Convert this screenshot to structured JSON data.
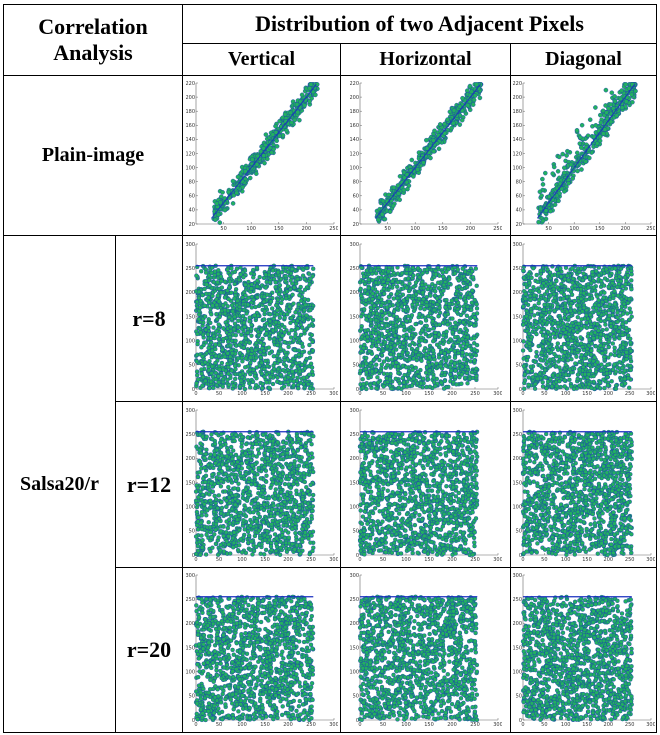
{
  "header": {
    "col1": "Correlation Analysis",
    "col2": "Distribution of two Adjacent Pixels",
    "directions": [
      "Vertical",
      "Horizontal",
      "Diagonal"
    ]
  },
  "rows": {
    "plain_label": "Plain-image",
    "cipher_label": "Salsa20/r",
    "rounds": [
      "r=8",
      "r=12",
      "r=20"
    ]
  },
  "colors": {
    "point_fill": "#22b060",
    "point_edge": "#1a2fbf",
    "axis": "#666666"
  },
  "chart_data": [
    {
      "type": "scatter",
      "name": "plain",
      "xlim": [
        0,
        250
      ],
      "ylim": [
        20,
        220
      ],
      "xticks": [
        50,
        100,
        150,
        200,
        250
      ],
      "yticks": [
        20,
        40,
        60,
        80,
        100,
        120,
        140,
        160,
        180,
        200,
        220
      ],
      "pattern": "strong positive linear correlation along y = x"
    },
    {
      "type": "scatter",
      "name": "cipher",
      "xlim": [
        0,
        300
      ],
      "ylim": [
        0,
        300
      ],
      "xticks": [
        0,
        50,
        100,
        150,
        200,
        250,
        300
      ],
      "yticks": [
        0,
        50,
        100,
        150,
        200,
        250,
        300
      ],
      "pattern": "uniform distribution over [0,255] x [0,255]"
    }
  ]
}
